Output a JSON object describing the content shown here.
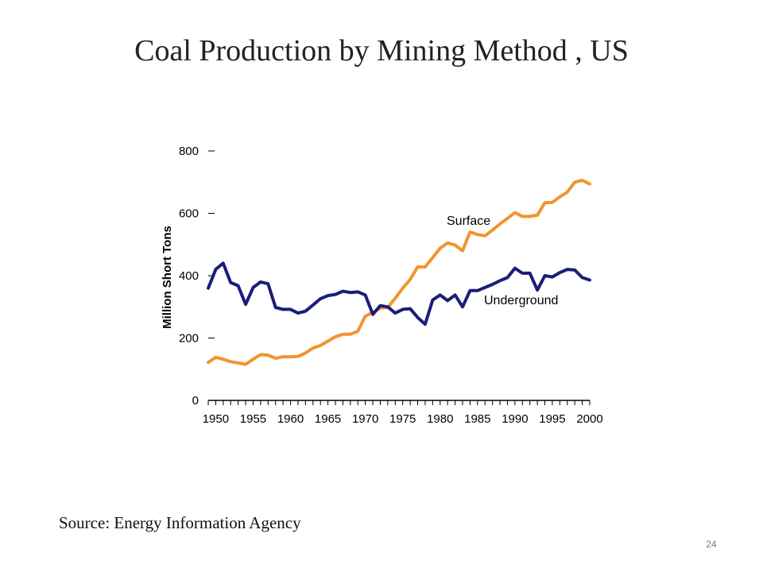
{
  "slide": {
    "title": "Coal Production by Mining Method , US",
    "source": "Source:  Energy Information Agency",
    "page_number": "24"
  },
  "chart_data": {
    "type": "line",
    "title": "Coal Production by Mining Method , US",
    "xlabel": "",
    "ylabel": "Million Short Tons",
    "ylim": [
      0,
      800
    ],
    "xlim": [
      1949,
      2000
    ],
    "yticks": [
      0,
      200,
      400,
      600,
      800
    ],
    "xticks": [
      1950,
      1955,
      1960,
      1965,
      1970,
      1975,
      1980,
      1985,
      1990,
      1995,
      2000
    ],
    "grid": false,
    "legend": "none (series labelled directly on lines)",
    "x": [
      1949,
      1950,
      1951,
      1952,
      1953,
      1954,
      1955,
      1956,
      1957,
      1958,
      1959,
      1960,
      1961,
      1962,
      1963,
      1964,
      1965,
      1966,
      1967,
      1968,
      1969,
      1970,
      1971,
      1972,
      1973,
      1974,
      1975,
      1976,
      1977,
      1978,
      1979,
      1980,
      1981,
      1982,
      1983,
      1984,
      1985,
      1986,
      1987,
      1988,
      1989,
      1990,
      1991,
      1992,
      1993,
      1994,
      1995,
      1996,
      1997,
      1998,
      1999,
      2000
    ],
    "series": [
      {
        "name": "Surface",
        "color": "#f0962d",
        "values": [
          122,
          138,
          132,
          124,
          120,
          116,
          132,
          147,
          145,
          135,
          140,
          140,
          141,
          152,
          168,
          176,
          190,
          204,
          212,
          212,
          222,
          270,
          282,
          296,
          298,
          328,
          360,
          388,
          428,
          428,
          458,
          488,
          505,
          498,
          480,
          540,
          532,
          528,
          546,
          566,
          584,
          602,
          590,
          590,
          594,
          634,
          635,
          653,
          668,
          700,
          706,
          694
        ]
      },
      {
        "name": "Underground",
        "color": "#1a1e78",
        "values": [
          360,
          420,
          440,
          378,
          368,
          308,
          362,
          380,
          374,
          298,
          292,
          292,
          280,
          286,
          306,
          326,
          336,
          340,
          350,
          346,
          348,
          338,
          276,
          304,
          300,
          280,
          292,
          294,
          266,
          244,
          322,
          338,
          320,
          338,
          300,
          352,
          352,
          362,
          372,
          384,
          394,
          424,
          408,
          408,
          354,
          400,
          396,
          410,
          420,
          418,
          394,
          386
        ]
      }
    ],
    "annotations": [
      {
        "text": "Surface",
        "series": "Surface"
      },
      {
        "text": "Underground",
        "series": "Underground"
      }
    ]
  }
}
